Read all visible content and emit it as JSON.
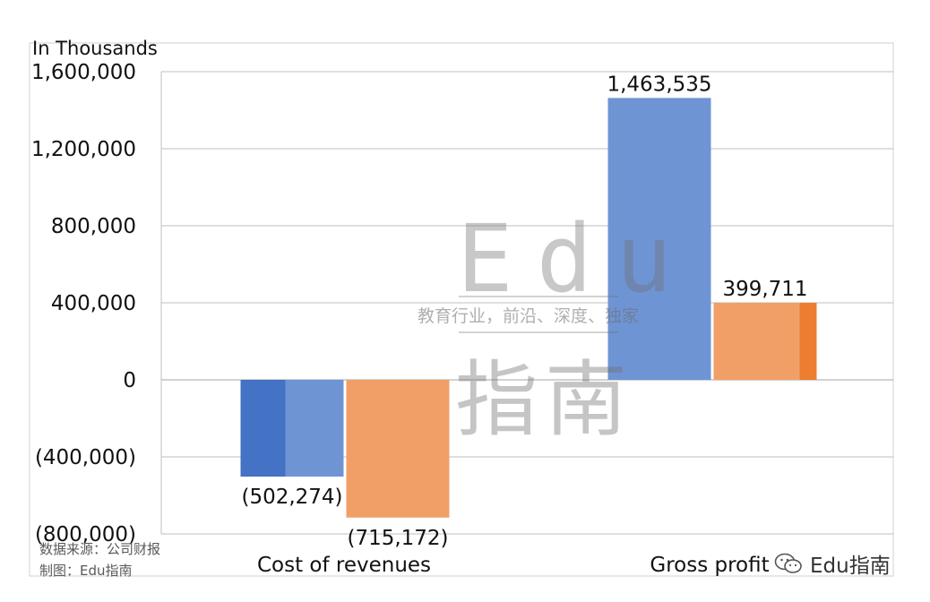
{
  "chart_data": {
    "type": "bar",
    "unit_label": "In Thousands",
    "categories": [
      "Cost of revenues",
      "Gross profit"
    ],
    "ylim": [
      -800000,
      1600000
    ],
    "yticks": [
      1600000,
      1200000,
      800000,
      400000,
      0,
      -400000,
      -800000
    ],
    "ytick_labels": [
      "1,600,000",
      "1,200,000",
      "800,000",
      "400,000",
      "0",
      "(400,000)",
      "(800,000)"
    ],
    "grid": true,
    "series": [
      {
        "values": [
          -502274,
          1463535
        ],
        "labels": [
          "(502,274)",
          "1,463,535"
        ],
        "color": "#6f94d3",
        "shade": "#4472c4"
      },
      {
        "values": [
          -715172,
          399711
        ],
        "labels": [
          "(715,172)",
          "399,711"
        ],
        "color": "#f19f66",
        "shade": "#ed7d31"
      }
    ]
  },
  "footer": {
    "source": "数据来源：公司财报",
    "made_by": "制图：Edu指南"
  },
  "watermark": {
    "latin": "Edu",
    "tagline": "教育行业，前沿、深度、独家",
    "chinese": "指南"
  },
  "brand": {
    "name": "Edu指南",
    "icon": "wechat-icon"
  }
}
